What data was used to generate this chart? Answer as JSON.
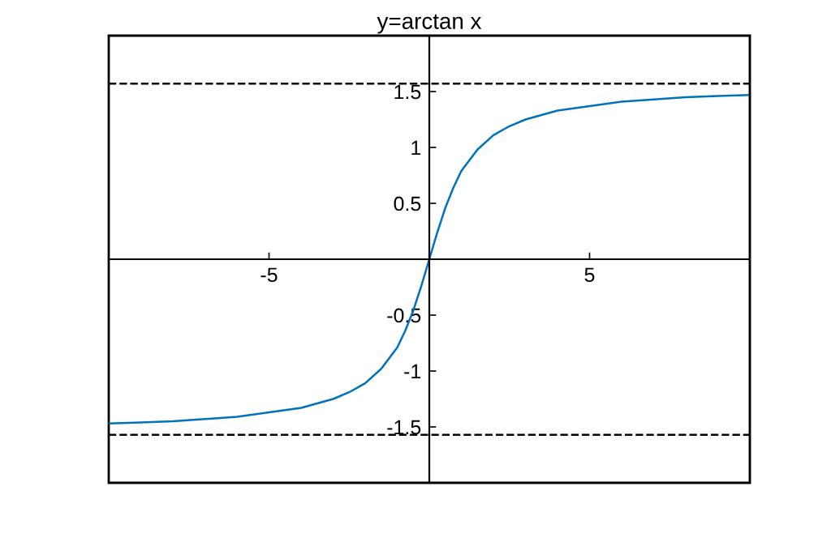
{
  "chart_data": {
    "type": "line",
    "title": "y=arctan x",
    "x": [
      -10,
      -9,
      -8,
      -7,
      -6,
      -5,
      -4,
      -3,
      -2.5,
      -2,
      -1.5,
      -1,
      -0.75,
      -0.5,
      -0.25,
      0,
      0.25,
      0.5,
      0.75,
      1,
      1.5,
      2,
      2.5,
      3,
      4,
      5,
      6,
      7,
      8,
      9,
      10
    ],
    "series": [
      {
        "color": "#0072bd",
        "values": [
          -1.47,
          -1.46,
          -1.45,
          -1.43,
          -1.41,
          -1.37,
          -1.33,
          -1.25,
          -1.19,
          -1.11,
          -0.98,
          -0.79,
          -0.64,
          -0.46,
          -0.24,
          0,
          0.24,
          0.46,
          0.64,
          0.79,
          0.98,
          1.11,
          1.19,
          1.25,
          1.33,
          1.37,
          1.41,
          1.43,
          1.45,
          1.46,
          1.47
        ]
      }
    ],
    "xlim": [
      -10,
      10
    ],
    "ylim": [
      -2,
      2
    ],
    "xticks": [
      {
        "value": -5,
        "label": "-5"
      },
      5
    ],
    "yticks": [
      {
        "value": -1.5,
        "label": "-1.5"
      },
      {
        "value": -1,
        "label": "-1"
      },
      {
        "value": -0.5,
        "label": "-0.5"
      },
      0.5,
      1,
      1.5
    ],
    "ref_lines": [
      {
        "axis": "y",
        "value": 1.5708,
        "color": "#000000",
        "line_style": "dashed"
      },
      {
        "axis": "y",
        "value": -1.5708,
        "color": "#000000",
        "line_style": "dashed"
      }
    ],
    "grid": false,
    "legend": false,
    "marker": "none",
    "line_style": "solid"
  }
}
